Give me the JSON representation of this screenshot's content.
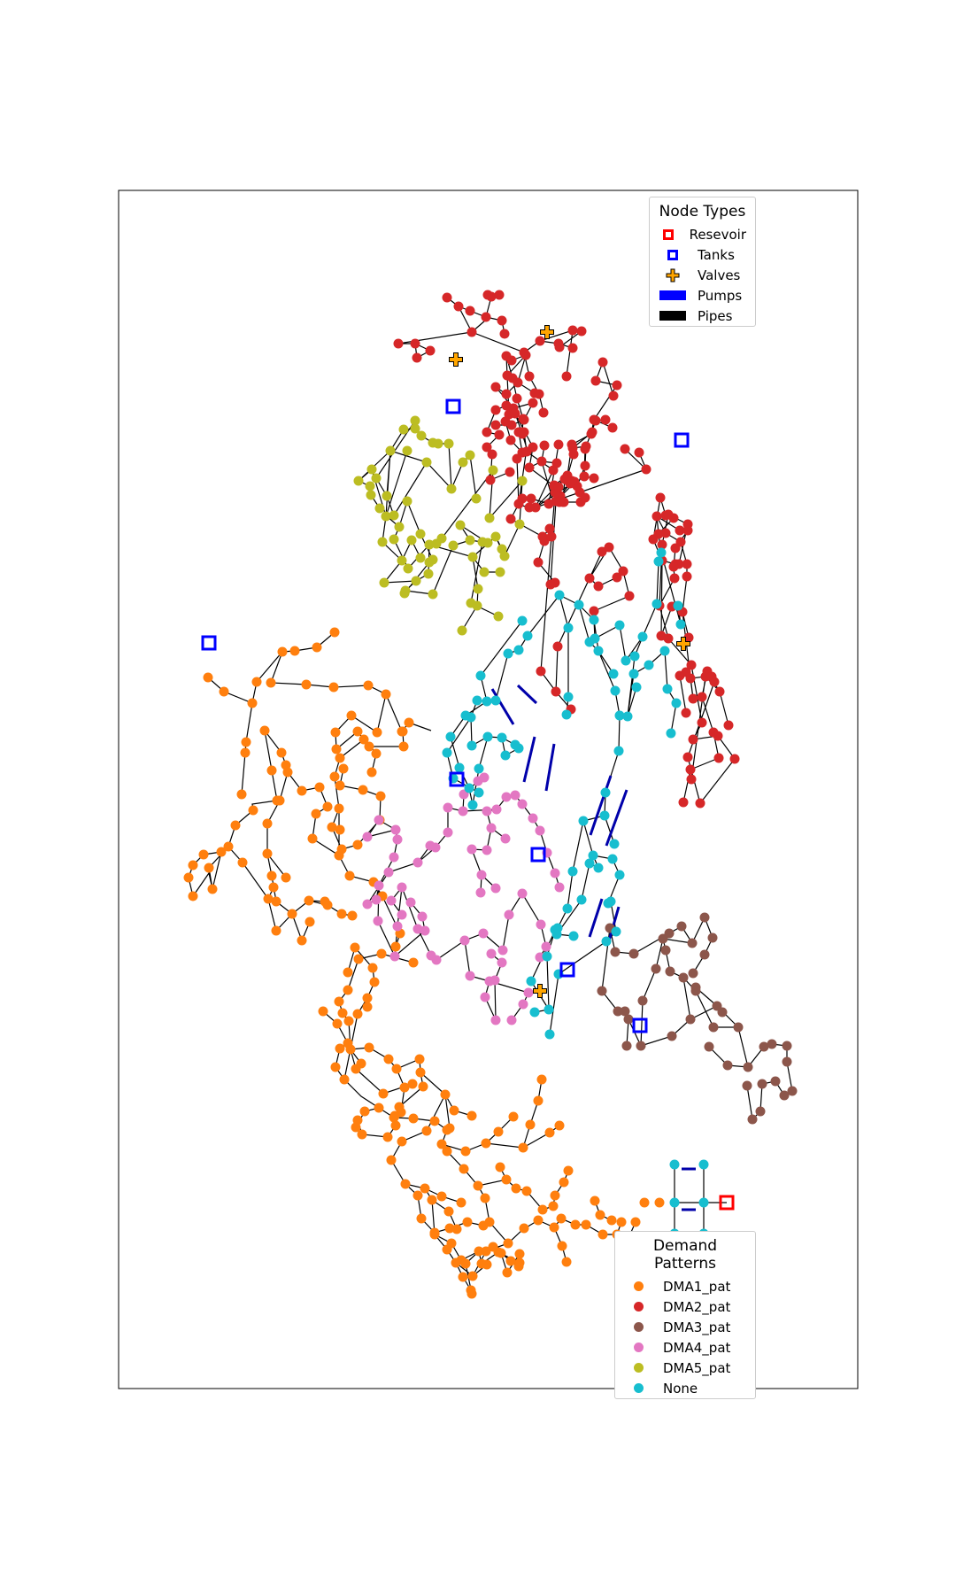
{
  "node_legend": {
    "title": "Node Types",
    "items": [
      {
        "label": "Resevoir",
        "icon": "red-square-outline"
      },
      {
        "label": "Tanks",
        "icon": "blue-square-outline"
      },
      {
        "label": "Valves",
        "icon": "orange-plus"
      },
      {
        "label": "Pumps",
        "icon": "blue-bar"
      },
      {
        "label": "Pipes",
        "icon": "black-bar"
      }
    ]
  },
  "demand_legend": {
    "title": "Demand Patterns",
    "items": [
      {
        "label": "DMA1_pat",
        "color": "#ff7f0e"
      },
      {
        "label": "DMA2_pat",
        "color": "#d62728"
      },
      {
        "label": "DMA3_pat",
        "color": "#8c564b"
      },
      {
        "label": "DMA4_pat",
        "color": "#e377c2"
      },
      {
        "label": "DMA5_pat",
        "color": "#bcbd22"
      },
      {
        "label": "None",
        "color": "#17becf"
      }
    ]
  },
  "colors": {
    "reservoir": "#ff0000",
    "tank": "#0000ff",
    "valve": "#ffa500",
    "pump": "#0000aa",
    "pipe": "#000000"
  }
}
